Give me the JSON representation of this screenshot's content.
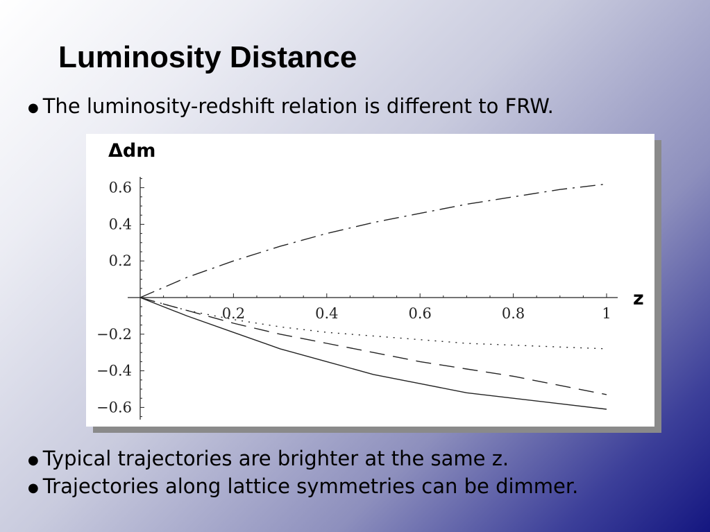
{
  "slide": {
    "title": "Luminosity Distance",
    "bullets": [
      "The luminosity-redshift relation is different to FRW.",
      "Typical trajectories are brighter at the same z.",
      "Trajectories along lattice symmetries can be dimmer."
    ],
    "bullet_glyph": "●"
  },
  "chart_data": {
    "type": "line",
    "xlabel": "z",
    "ylabel": "Δdm",
    "xlim": [
      0,
      1
    ],
    "ylim": [
      -0.6,
      0.6
    ],
    "x_ticks": [
      "0.2",
      "0.4",
      "0.6",
      "0.8",
      "1"
    ],
    "y_ticks": [
      "0.6",
      "0.4",
      "0.2",
      "−0.2",
      "−0.4",
      "−0.6"
    ],
    "x_tick_values": [
      0.2,
      0.4,
      0.6,
      0.8,
      1.0
    ],
    "y_tick_values": [
      0.6,
      0.4,
      0.2,
      -0.2,
      -0.4,
      -0.6
    ],
    "grid": false,
    "x": [
      0,
      0.1,
      0.2,
      0.3,
      0.4,
      0.5,
      0.6,
      0.7,
      0.8,
      0.9,
      1.0
    ],
    "series": [
      {
        "style": "dash-dot",
        "values": [
          0,
          0.11,
          0.2,
          0.28,
          0.35,
          0.41,
          0.46,
          0.51,
          0.55,
          0.59,
          0.62
        ]
      },
      {
        "style": "dotted",
        "values": [
          0,
          -0.07,
          -0.12,
          -0.16,
          -0.19,
          -0.21,
          -0.23,
          -0.25,
          -0.26,
          -0.27,
          -0.28
        ]
      },
      {
        "style": "dashed",
        "values": [
          0,
          -0.07,
          -0.14,
          -0.2,
          -0.25,
          -0.3,
          -0.35,
          -0.39,
          -0.43,
          -0.48,
          -0.53
        ]
      },
      {
        "style": "solid",
        "values": [
          0,
          -0.1,
          -0.19,
          -0.28,
          -0.35,
          -0.42,
          -0.47,
          -0.52,
          -0.55,
          -0.58,
          -0.61
        ]
      }
    ]
  }
}
